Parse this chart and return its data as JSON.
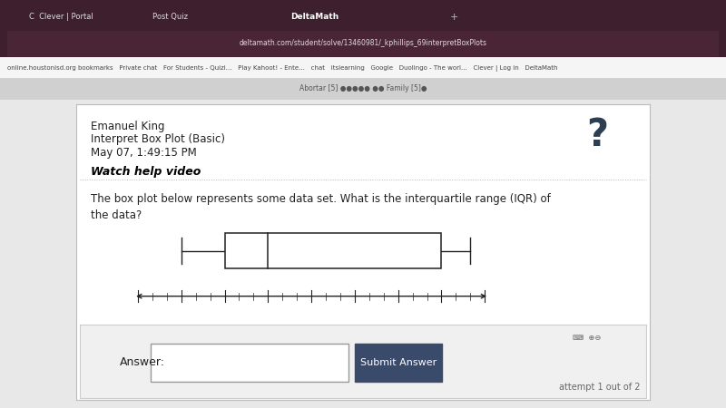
{
  "header_name": "Emanuel King",
  "header_subject": "Interpret Box Plot (Basic)",
  "header_date": "May 07, 1:49:15 PM",
  "watch_help": "Watch help video",
  "question_line1": "The box plot below represents some data set. What is the interquartile range (IQR) of",
  "question_line2": "the data?",
  "whisker_min": 18,
  "q1": 21,
  "median": 24,
  "q3": 36,
  "whisker_max": 38,
  "axis_min": 15,
  "axis_max": 39,
  "axis_ticks": [
    15,
    18,
    21,
    24,
    27,
    30,
    33,
    36,
    39
  ],
  "answer_label": "Answer:",
  "submit_label": "Submit Answer",
  "attempt_text": "attempt 1 out of 2",
  "browser_bar_color": "#3d1f2e",
  "browser_tab_active": "#f5f5f5",
  "browser_bg": "#2b1820",
  "page_bg": "#e8e8e8",
  "card_bg": "#ffffff",
  "card_border": "#cccccc",
  "ans_area_bg": "#f0f0f0",
  "ans_border": "#cccccc",
  "submit_bg": "#3a4a6b",
  "submit_text": "#ffffff",
  "text_color": "#222222",
  "watch_color": "#000000",
  "separator_color": "#bbbbbb",
  "question_mark_color": "#2c3e50",
  "box_face": "#ffffff",
  "box_edge": "#222222",
  "whisker_color": "#222222",
  "axis_color": "#222222"
}
